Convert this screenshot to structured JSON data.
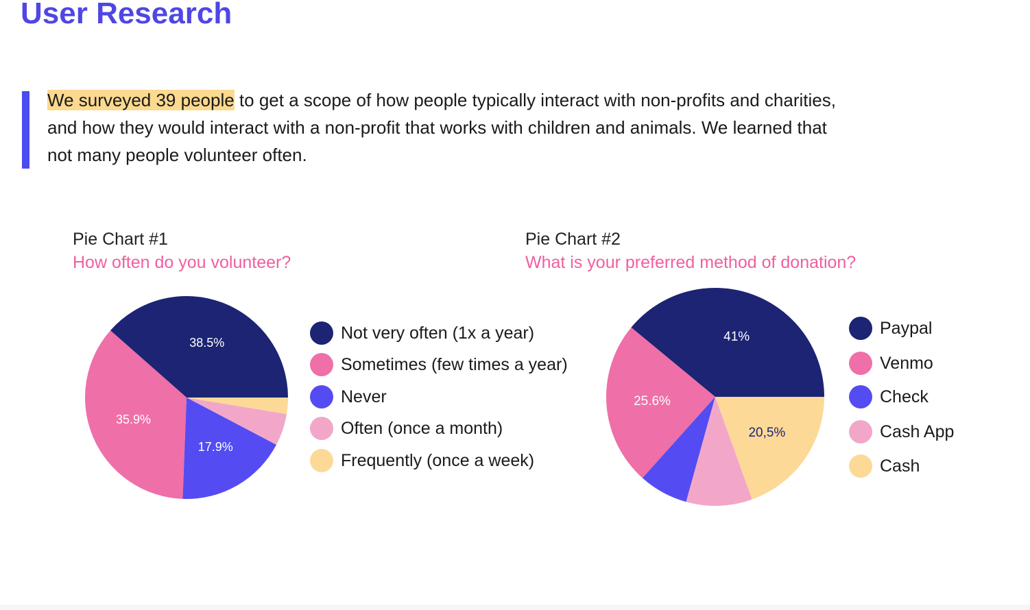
{
  "page": {
    "title": "User Research",
    "intro_highlight": "We surveyed 39 people",
    "intro_rest": " to get a scope of how people typically interact with non-profits and charities, and how they would interact with a non-profit that works with children and animals. We learned that not many people volunteer often."
  },
  "colors": {
    "accent": "#4f46e5",
    "quote_bar": "#4b4bf0",
    "highlight": "#fbd98f",
    "question_pink": "#ef5fa0"
  },
  "chart_data": [
    {
      "type": "pie",
      "title": "Pie Chart #1",
      "subtitle": "How often do you volunteer?",
      "legend_position": "right",
      "slices": [
        {
          "label": "Not very often (1x a year)",
          "value": 38.5,
          "data_label": "38.5%",
          "color": "#1c2473"
        },
        {
          "label": "Sometimes (few times a year)",
          "value": 35.9,
          "data_label": "35.9%",
          "color": "#ef6fa8"
        },
        {
          "label": "Never",
          "value": 17.9,
          "data_label": "17.9%",
          "color": "#544cf2"
        },
        {
          "label": "Often (once a month)",
          "value": 5.1,
          "data_label": "",
          "color": "#f2a7c9"
        },
        {
          "label": "Frequently (once a week)",
          "value": 2.6,
          "data_label": "",
          "color": "#fdd998"
        }
      ]
    },
    {
      "type": "pie",
      "title": "Pie Chart #2",
      "subtitle": "What is your preferred method of donation?",
      "legend_position": "right",
      "slices": [
        {
          "label": "Paypal",
          "value": 41,
          "data_label": "41%",
          "color": "#1c2473"
        },
        {
          "label": "Venmo",
          "value": 25.6,
          "data_label": "25.6%",
          "color": "#ef6fa8"
        },
        {
          "label": "Check",
          "value": 7.7,
          "data_label": "",
          "color": "#544cf2"
        },
        {
          "label": "Cash App",
          "value": 10.3,
          "data_label": "",
          "color": "#f2a7c9"
        },
        {
          "label": "Cash",
          "value": 20.5,
          "data_label": "20,5%",
          "color": "#fdd998"
        }
      ]
    }
  ]
}
